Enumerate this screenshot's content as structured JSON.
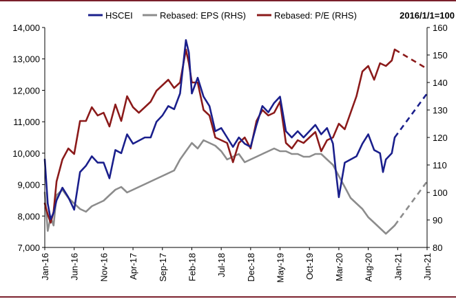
{
  "chart_data": {
    "type": "line",
    "title": "",
    "note": "2016/1/1=100",
    "x_tick_labels": [
      "Jan-16",
      "Jun-16",
      "Nov-16",
      "Apr-17",
      "Sep-17",
      "Feb-18",
      "Jul-18",
      "Dec-18",
      "May-19",
      "Oct-19",
      "Mar-20",
      "Aug-20",
      "Jan-21",
      "Jun-21"
    ],
    "x_tick_months": [
      0,
      5,
      10,
      15,
      20,
      25,
      30,
      35,
      40,
      45,
      50,
      55,
      60,
      65
    ],
    "x_range_months": [
      0,
      65
    ],
    "y_left": {
      "label": "",
      "range": [
        7000,
        14000
      ],
      "ticks": [
        7000,
        8000,
        9000,
        10000,
        11000,
        12000,
        13000,
        14000
      ],
      "tick_labels": [
        "7,000",
        "8,000",
        "9,000",
        "10,000",
        "11,000",
        "12,000",
        "13,000",
        "14,000"
      ]
    },
    "y_right": {
      "label": "",
      "range": [
        80,
        160
      ],
      "ticks": [
        80,
        90,
        100,
        110,
        120,
        130,
        140,
        150,
        160
      ],
      "tick_labels": [
        "80",
        "90",
        "100",
        "110",
        "120",
        "130",
        "140",
        "150",
        "160"
      ]
    },
    "legend": [
      "HSCEI",
      "Rebased: EPS (RHS)",
      "Rebased: P/E (RHS)"
    ],
    "series": [
      {
        "name": "HSCEI",
        "axis": "left",
        "color": "#1a1f8c",
        "points": [
          [
            0,
            9800
          ],
          [
            0.5,
            8400
          ],
          [
            1,
            7900
          ],
          [
            1.5,
            8100
          ],
          [
            2,
            8500
          ],
          [
            3,
            8900
          ],
          [
            4,
            8600
          ],
          [
            5,
            8200
          ],
          [
            6,
            9400
          ],
          [
            7,
            9600
          ],
          [
            8,
            9900
          ],
          [
            9,
            9700
          ],
          [
            10,
            9700
          ],
          [
            11,
            9200
          ],
          [
            12,
            10100
          ],
          [
            13,
            10000
          ],
          [
            14,
            10600
          ],
          [
            15,
            10300
          ],
          [
            16,
            10400
          ],
          [
            17,
            10500
          ],
          [
            18,
            10500
          ],
          [
            19,
            11000
          ],
          [
            20,
            11200
          ],
          [
            21,
            11500
          ],
          [
            22,
            11400
          ],
          [
            23,
            11900
          ],
          [
            24,
            13600
          ],
          [
            24.5,
            13200
          ],
          [
            25,
            11900
          ],
          [
            26,
            12400
          ],
          [
            27,
            11800
          ],
          [
            28,
            11500
          ],
          [
            29,
            10700
          ],
          [
            30,
            10800
          ],
          [
            31,
            10500
          ],
          [
            32,
            10200
          ],
          [
            33,
            10500
          ],
          [
            34,
            10300
          ],
          [
            35,
            10200
          ],
          [
            36,
            10900
          ],
          [
            37,
            11500
          ],
          [
            38,
            11300
          ],
          [
            39,
            11600
          ],
          [
            40,
            11800
          ],
          [
            41,
            10700
          ],
          [
            42,
            10500
          ],
          [
            43,
            10700
          ],
          [
            44,
            10500
          ],
          [
            45,
            10700
          ],
          [
            46,
            10900
          ],
          [
            47,
            10600
          ],
          [
            48,
            10800
          ],
          [
            49,
            10300
          ],
          [
            49.5,
            9400
          ],
          [
            50,
            8600
          ],
          [
            51,
            9700
          ],
          [
            52,
            9800
          ],
          [
            53,
            9900
          ],
          [
            54,
            10300
          ],
          [
            55,
            10600
          ],
          [
            56,
            10100
          ],
          [
            57,
            10000
          ],
          [
            57.5,
            9400
          ],
          [
            58,
            9800
          ],
          [
            59,
            10000
          ],
          [
            59.5,
            10500
          ]
        ],
        "forecast": [
          [
            59.5,
            10500
          ],
          [
            65,
            11900
          ]
        ]
      },
      {
        "name": "Rebased: EPS (RHS)",
        "axis": "right",
        "color": "#8c8c8c",
        "points": [
          [
            0,
            100
          ],
          [
            0.5,
            86
          ],
          [
            1,
            91
          ],
          [
            1.5,
            88
          ],
          [
            2,
            99
          ],
          [
            3,
            101
          ],
          [
            4,
            98
          ],
          [
            5,
            96
          ],
          [
            6,
            94
          ],
          [
            7,
            93
          ],
          [
            8,
            95
          ],
          [
            9,
            96
          ],
          [
            10,
            97
          ],
          [
            11,
            99
          ],
          [
            12,
            101
          ],
          [
            13,
            102
          ],
          [
            14,
            100
          ],
          [
            15,
            101
          ],
          [
            16,
            102
          ],
          [
            17,
            103
          ],
          [
            18,
            104
          ],
          [
            19,
            105
          ],
          [
            20,
            106
          ],
          [
            21,
            107
          ],
          [
            22,
            108
          ],
          [
            23,
            112
          ],
          [
            24,
            115
          ],
          [
            25,
            118
          ],
          [
            26,
            116
          ],
          [
            27,
            119
          ],
          [
            28,
            118
          ],
          [
            29,
            117
          ],
          [
            30,
            115
          ],
          [
            31,
            112
          ],
          [
            32,
            113
          ],
          [
            33,
            114
          ],
          [
            34,
            111
          ],
          [
            35,
            112
          ],
          [
            36,
            113
          ],
          [
            37,
            114
          ],
          [
            38,
            115
          ],
          [
            39,
            116
          ],
          [
            40,
            115
          ],
          [
            41,
            115
          ],
          [
            42,
            114
          ],
          [
            43,
            114
          ],
          [
            44,
            113
          ],
          [
            45,
            113
          ],
          [
            46,
            114
          ],
          [
            47,
            114
          ],
          [
            48,
            112
          ],
          [
            49,
            110
          ],
          [
            50,
            106
          ],
          [
            51,
            102
          ],
          [
            52,
            98
          ],
          [
            53,
            96
          ],
          [
            54,
            94
          ],
          [
            55,
            91
          ],
          [
            56,
            89
          ],
          [
            57,
            87
          ],
          [
            58,
            85
          ],
          [
            59,
            87
          ],
          [
            59.5,
            88
          ]
        ],
        "forecast": [
          [
            59.5,
            88
          ],
          [
            65,
            104
          ]
        ]
      },
      {
        "name": "Rebased: P/E (RHS)",
        "axis": "right",
        "color": "#8b1a1a",
        "points": [
          [
            0,
            96
          ],
          [
            0.5,
            92
          ],
          [
            1,
            89
          ],
          [
            1.5,
            93
          ],
          [
            2,
            104
          ],
          [
            3,
            112
          ],
          [
            4,
            116
          ],
          [
            5,
            114
          ],
          [
            6,
            126
          ],
          [
            7,
            126
          ],
          [
            8,
            131
          ],
          [
            9,
            128
          ],
          [
            10,
            129
          ],
          [
            11,
            124
          ],
          [
            12,
            132
          ],
          [
            13,
            126
          ],
          [
            14,
            135
          ],
          [
            15,
            131
          ],
          [
            16,
            129
          ],
          [
            17,
            131
          ],
          [
            18,
            133
          ],
          [
            19,
            137
          ],
          [
            20,
            139
          ],
          [
            21,
            141
          ],
          [
            22,
            138
          ],
          [
            23,
            140
          ],
          [
            24,
            152
          ],
          [
            24.5,
            147
          ],
          [
            25,
            140
          ],
          [
            26,
            140
          ],
          [
            27,
            130
          ],
          [
            28,
            128
          ],
          [
            29,
            120
          ],
          [
            30,
            119
          ],
          [
            31,
            118
          ],
          [
            32,
            111
          ],
          [
            33,
            118
          ],
          [
            34,
            120
          ],
          [
            35,
            116
          ],
          [
            36,
            126
          ],
          [
            37,
            130
          ],
          [
            38,
            128
          ],
          [
            39,
            129
          ],
          [
            40,
            133
          ],
          [
            41,
            118
          ],
          [
            42,
            116
          ],
          [
            43,
            119
          ],
          [
            44,
            118
          ],
          [
            45,
            120
          ],
          [
            46,
            122
          ],
          [
            47,
            115
          ],
          [
            48,
            119
          ],
          [
            49,
            120
          ],
          [
            50,
            125
          ],
          [
            51,
            123
          ],
          [
            52,
            129
          ],
          [
            53,
            135
          ],
          [
            54,
            144
          ],
          [
            55,
            146
          ],
          [
            56,
            141
          ],
          [
            57,
            147
          ],
          [
            58,
            146
          ],
          [
            59,
            148
          ],
          [
            59.5,
            152
          ]
        ],
        "forecast": [
          [
            59.5,
            152
          ],
          [
            65,
            145
          ]
        ]
      }
    ]
  }
}
